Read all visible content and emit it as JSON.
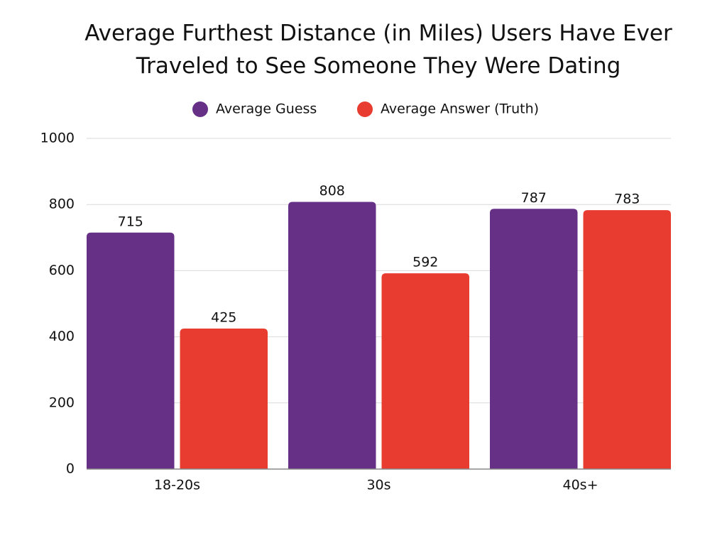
{
  "chart_data": {
    "type": "bar",
    "title": "Average Furthest Distance (in Miles) Users Have Ever Traveled to See Someone They Were Dating",
    "categories": [
      "18-20s",
      "30s",
      "40s+"
    ],
    "series": [
      {
        "name": "Average Guess",
        "color": "#663087",
        "values": [
          715,
          808,
          787
        ]
      },
      {
        "name": "Average Answer (Truth)",
        "color": "#e83c30",
        "values": [
          425,
          592,
          783
        ]
      }
    ],
    "ylim": [
      0,
      1000
    ],
    "yticks": [
      0,
      200,
      400,
      600,
      800,
      1000
    ],
    "grid": true,
    "legend": "top"
  }
}
